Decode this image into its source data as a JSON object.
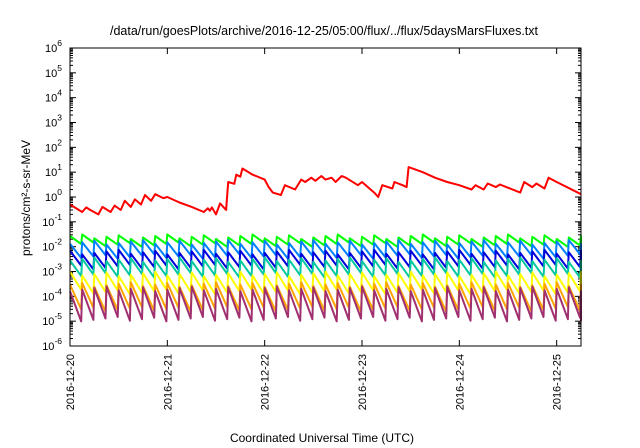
{
  "chart_data": {
    "type": "line",
    "title": "/data/run/goesPlots/archive/2016-12-25/05:00/flux/../flux/5daysMarsFluxes.txt",
    "xlabel": "Coordinated Universal Time (UTC)",
    "ylabel": "protons/cm²-s-sr-MeV",
    "yscale": "log",
    "ylim": [
      1e-06,
      1000000.0
    ],
    "y_ticks": [
      {
        "base": "10",
        "exp": "-6"
      },
      {
        "base": "10",
        "exp": "-5"
      },
      {
        "base": "10",
        "exp": "-4"
      },
      {
        "base": "10",
        "exp": "-3"
      },
      {
        "base": "10",
        "exp": "-2"
      },
      {
        "base": "10",
        "exp": "-1"
      },
      {
        "base": "10",
        "exp": "0"
      },
      {
        "base": "10",
        "exp": "1"
      },
      {
        "base": "10",
        "exp": "2"
      },
      {
        "base": "10",
        "exp": "3"
      },
      {
        "base": "10",
        "exp": "4"
      },
      {
        "base": "10",
        "exp": "5"
      },
      {
        "base": "10",
        "exp": "6"
      }
    ],
    "xlim": [
      "2016-12-20T00:00",
      "2016-12-25T06:00"
    ],
    "x_ticks": [
      "2016-12-20",
      "2016-12-21",
      "2016-12-22",
      "2016-12-23",
      "2016-12-24",
      "2016-12-25"
    ],
    "grid": false,
    "series": [
      {
        "color": "#ff0000",
        "x": [
          "2016-12-20T00:00",
          "2016-12-20T03:00",
          "2016-12-20T04:00",
          "2016-12-20T05:00",
          "2016-12-20T07:00",
          "2016-12-20T08:00",
          "2016-12-20T10:00",
          "2016-12-20T11:00",
          "2016-12-20T12:30",
          "2016-12-20T13:30",
          "2016-12-20T15:00",
          "2016-12-20T16:00",
          "2016-12-20T17:30",
          "2016-12-20T18:30",
          "2016-12-20T20:00",
          "2016-12-20T21:00",
          "2016-12-20T23:00",
          "2016-12-21T00:00",
          "2016-12-21T03:00",
          "2016-12-21T06:00",
          "2016-12-21T09:00",
          "2016-12-21T10:00",
          "2016-12-21T10:30",
          "2016-12-21T11:00",
          "2016-12-21T12:00",
          "2016-12-21T13:00",
          "2016-12-21T14:30",
          "2016-12-21T15:00",
          "2016-12-21T16:30",
          "2016-12-21T17:00",
          "2016-12-21T18:00",
          "2016-12-21T18:30",
          "2016-12-21T21:00",
          "2016-12-22T00:00",
          "2016-12-22T01:00",
          "2016-12-22T02:00",
          "2016-12-22T04:00",
          "2016-12-22T05:00",
          "2016-12-22T07:30",
          "2016-12-22T09:00",
          "2016-12-22T10:00",
          "2016-12-22T11:30",
          "2016-12-22T12:30",
          "2016-12-22T14:00",
          "2016-12-22T15:00",
          "2016-12-22T16:30",
          "2016-12-22T17:30",
          "2016-12-22T19:00",
          "2016-12-22T20:00",
          "2016-12-22T23:00",
          "2016-12-23T00:00",
          "2016-12-23T03:00",
          "2016-12-23T04:00",
          "2016-12-23T05:00",
          "2016-12-23T07:30",
          "2016-12-23T08:00",
          "2016-12-23T10:00",
          "2016-12-23T11:00",
          "2016-12-23T11:30",
          "2016-12-23T15:00",
          "2016-12-23T18:00",
          "2016-12-23T21:00",
          "2016-12-24T00:00",
          "2016-12-24T03:00",
          "2016-12-24T04:00",
          "2016-12-24T06:00",
          "2016-12-24T07:00",
          "2016-12-24T09:00",
          "2016-12-24T10:00",
          "2016-12-24T15:00",
          "2016-12-24T16:00",
          "2016-12-24T18:00",
          "2016-12-24T19:00",
          "2016-12-24T21:00",
          "2016-12-24T22:00",
          "2016-12-25T00:00",
          "2016-12-25T06:00"
        ],
        "values": [
          0.5,
          0.25,
          0.38,
          0.3,
          0.2,
          0.4,
          0.25,
          0.45,
          0.3,
          0.7,
          0.4,
          0.8,
          0.5,
          1.2,
          0.7,
          1.3,
          0.9,
          1.0,
          0.6,
          0.4,
          0.25,
          0.35,
          0.28,
          0.38,
          0.2,
          0.55,
          0.3,
          4,
          3.4,
          8,
          6.5,
          14,
          8,
          5,
          2.5,
          1.5,
          1.2,
          3,
          2,
          5,
          4,
          6,
          4.5,
          7,
          5,
          6,
          4,
          7,
          6,
          3,
          4,
          1.5,
          1.0,
          3,
          2.2,
          4,
          3,
          2.5,
          16,
          10,
          6,
          4,
          3,
          2,
          3,
          2,
          3.5,
          2.5,
          3.2,
          1.5,
          4,
          2.5,
          3.5,
          2.2,
          6,
          4,
          1.3
        ]
      },
      {
        "color": "#00ff00",
        "profile": "sawtooth",
        "period_hours": 3,
        "peak": 0.025,
        "trough": 0.012
      },
      {
        "color": "#0080ff",
        "profile": "sawtooth",
        "period_hours": 3,
        "peak": 0.015,
        "trough": 0.004
      },
      {
        "color": "#0000dd",
        "profile": "sawtooth",
        "period_hours": 3,
        "peak": 0.006,
        "trough": 0.0015
      },
      {
        "color": "#00c8a0",
        "profile": "sawtooth",
        "period_hours": 3,
        "peak": 0.003,
        "trough": 0.0007
      },
      {
        "color": "#ffff00",
        "profile": "sawtooth",
        "period_hours": 3,
        "peak": 0.0008,
        "trough": 0.00015
      },
      {
        "color": "#ffa500",
        "profile": "sawtooth",
        "period_hours": 3,
        "peak": 0.0003,
        "trough": 3e-05
      },
      {
        "color": "#a03070",
        "profile": "sawtooth",
        "period_hours": 3,
        "peak": 0.0002,
        "trough": 1.2e-05
      }
    ]
  }
}
